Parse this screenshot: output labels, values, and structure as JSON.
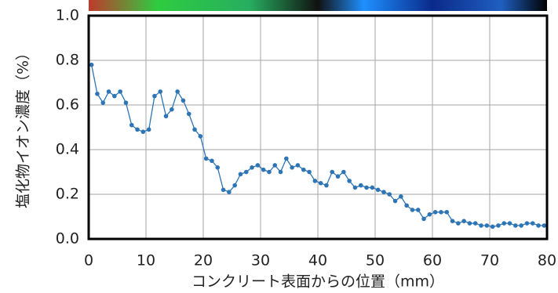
{
  "chart_data": {
    "type": "line",
    "xlabel": "コンクリート表面からの位置（mm）",
    "ylabel": "塩化物イオン濃度（%）",
    "xlim": [
      0,
      80
    ],
    "xticks": [
      0,
      10,
      20,
      30,
      40,
      50,
      60,
      70,
      80
    ],
    "ylim": [
      0,
      1.0
    ],
    "yticks": [
      {
        "value": 0,
        "label": "0.0"
      },
      0.2,
      0.4,
      0.6,
      0.8,
      {
        "value": 1.0,
        "label": "1.0"
      }
    ],
    "grid": true,
    "series": [
      {
        "color": "#2e75b6",
        "x": [
          0.5,
          1.5,
          2.5,
          3.5,
          4.5,
          5.5,
          6.5,
          7.5,
          8.5,
          9.5,
          10.5,
          11.5,
          12.5,
          13.5,
          14.5,
          15.5,
          16.5,
          17.5,
          18.5,
          19.5,
          20.5,
          21.5,
          22.5,
          23.5,
          24.5,
          25.5,
          26.5,
          27.5,
          28.5,
          29.5,
          30.5,
          31.5,
          32.5,
          33.5,
          34.5,
          35.5,
          36.5,
          37.5,
          38.5,
          39.5,
          40.5,
          41.5,
          42.5,
          43.5,
          44.5,
          45.5,
          46.5,
          47.5,
          48.5,
          49.5,
          50.5,
          51.5,
          52.5,
          53.5,
          54.5,
          55.5,
          56.5,
          57.5,
          58.5,
          59.5,
          60.5,
          61.5,
          62.5,
          63.5,
          64.5,
          65.5,
          66.5,
          67.5,
          68.5,
          69.5,
          70.5,
          71.5,
          72.5,
          73.5,
          74.5,
          75.5,
          76.5,
          77.5,
          78.5,
          79.5
        ],
        "values": [
          0.78,
          0.65,
          0.61,
          0.66,
          0.64,
          0.66,
          0.61,
          0.51,
          0.49,
          0.48,
          0.49,
          0.64,
          0.66,
          0.55,
          0.58,
          0.66,
          0.62,
          0.56,
          0.49,
          0.46,
          0.36,
          0.35,
          0.32,
          0.22,
          0.21,
          0.24,
          0.29,
          0.3,
          0.32,
          0.33,
          0.31,
          0.3,
          0.33,
          0.3,
          0.36,
          0.32,
          0.33,
          0.31,
          0.3,
          0.26,
          0.25,
          0.24,
          0.3,
          0.28,
          0.3,
          0.26,
          0.23,
          0.24,
          0.23,
          0.23,
          0.22,
          0.21,
          0.2,
          0.17,
          0.19,
          0.15,
          0.13,
          0.13,
          0.09,
          0.11,
          0.12,
          0.12,
          0.12,
          0.08,
          0.07,
          0.08,
          0.07,
          0.07,
          0.06,
          0.06,
          0.055,
          0.06,
          0.07,
          0.07,
          0.06,
          0.06,
          0.07,
          0.07,
          0.06,
          0.06
        ]
      }
    ]
  }
}
